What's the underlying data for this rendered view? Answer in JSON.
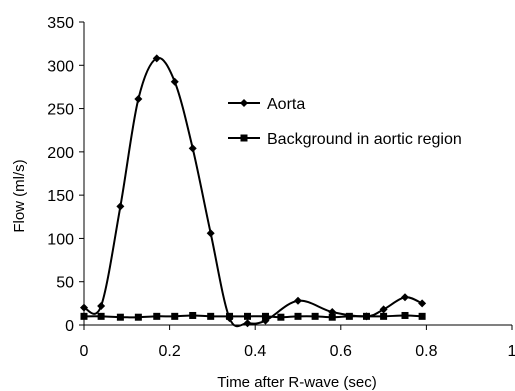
{
  "chart_data": {
    "type": "line",
    "xlabel": "Time after R-wave (sec)",
    "ylabel": "Flow (ml/s)",
    "xlim": [
      0,
      1
    ],
    "ylim": [
      0,
      350
    ],
    "xticks": [
      "0",
      "0.2",
      "0.4",
      "0.6",
      "0.8",
      "1"
    ],
    "yticks": [
      "0",
      "50",
      "100",
      "150",
      "200",
      "250",
      "300",
      "350"
    ],
    "grid": false,
    "legend_position": "top-right",
    "series": [
      {
        "name": "Aorta",
        "marker": "diamond",
        "color": "#000000",
        "x": [
          0,
          0.04,
          0.085,
          0.127,
          0.17,
          0.212,
          0.254,
          0.296,
          0.34,
          0.382,
          0.424,
          0.5,
          0.58,
          0.66,
          0.7,
          0.75,
          0.79
        ],
        "y": [
          20,
          22,
          137,
          261,
          308,
          281,
          204,
          106,
          8,
          2,
          5,
          28,
          15,
          10,
          18,
          32,
          25
        ]
      },
      {
        "name": "Background in aortic region",
        "marker": "square",
        "color": "#000000",
        "x": [
          0,
          0.04,
          0.085,
          0.127,
          0.17,
          0.212,
          0.254,
          0.296,
          0.34,
          0.382,
          0.424,
          0.46,
          0.5,
          0.54,
          0.58,
          0.62,
          0.66,
          0.7,
          0.75,
          0.79
        ],
        "y": [
          10,
          10,
          9,
          9,
          10,
          10,
          11,
          10,
          10,
          10,
          10,
          9,
          10,
          10,
          9,
          10,
          10,
          10,
          11,
          10
        ]
      }
    ]
  }
}
